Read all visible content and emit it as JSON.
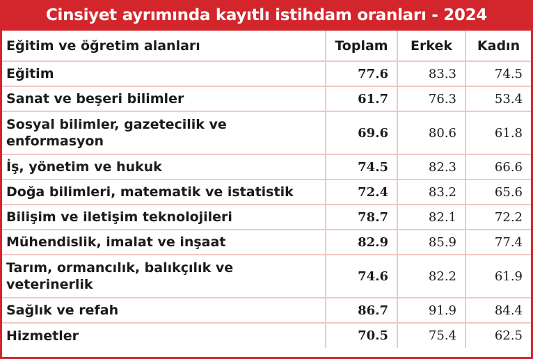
{
  "title": "Cinsiyet ayrımında kayıtlı istihdam oranları - 2024",
  "colors": {
    "accent": "#d3262c",
    "grid": "#f2c6c6",
    "title_text": "#ffffff"
  },
  "chart_data": {
    "type": "table",
    "title": "Cinsiyet ayrımında kayıtlı istihdam oranları - 2024",
    "columns": [
      "Eğitim ve öğretim alanları",
      "Toplam",
      "Erkek",
      "Kadın"
    ],
    "rows": [
      {
        "field": "Eğitim",
        "toplam": "77.6",
        "erkek": "83.3",
        "kadin": "74.5"
      },
      {
        "field": "Sanat ve beşeri bilimler",
        "toplam": "61.7",
        "erkek": "76.3",
        "kadin": "53.4"
      },
      {
        "field": "Sosyal bilimler, gazetecilik ve enformasyon",
        "toplam": "69.6",
        "erkek": "80.6",
        "kadin": "61.8"
      },
      {
        "field": "İş, yönetim ve hukuk",
        "toplam": "74.5",
        "erkek": "82.3",
        "kadin": "66.6"
      },
      {
        "field": "Doğa bilimleri, matematik ve istatistik",
        "toplam": "72.4",
        "erkek": "83.2",
        "kadin": "65.6"
      },
      {
        "field": "Bilişim ve iletişim teknolojileri",
        "toplam": "78.7",
        "erkek": "82.1",
        "kadin": "72.2"
      },
      {
        "field": "Mühendislik, imalat ve inşaat",
        "toplam": "82.9",
        "erkek": "85.9",
        "kadin": "77.4"
      },
      {
        "field": "Tarım, ormancılık, balıkçılık ve veterinerlik",
        "toplam": "74.6",
        "erkek": "82.2",
        "kadin": "61.9"
      },
      {
        "field": "Sağlık ve refah",
        "toplam": "86.7",
        "erkek": "91.9",
        "kadin": "84.4"
      },
      {
        "field": "Hizmetler",
        "toplam": "70.5",
        "erkek": "75.4",
        "kadin": "62.5"
      }
    ]
  }
}
